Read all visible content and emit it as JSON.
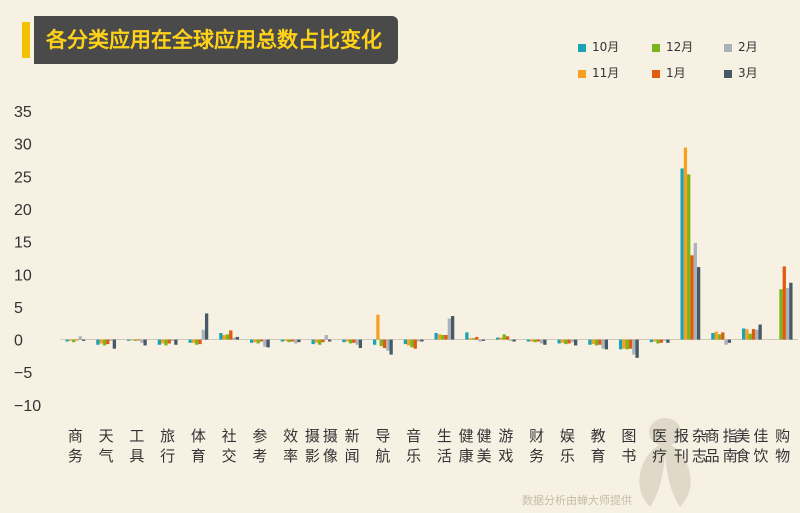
{
  "title": "各分类应用在全球应用总数占比变化",
  "watermark": "数据分析由蝉大师提供",
  "colors": {
    "background": "#f7f1e3",
    "title_bg": "#4a4a4a",
    "title_text": "#ffd21a",
    "accent": "#f2c200"
  },
  "chart_data": {
    "type": "bar",
    "title": "各分类应用在全球应用总数占比变化",
    "ylim": [
      -10,
      35
    ],
    "yticks": [
      35,
      30,
      25,
      20,
      15,
      10,
      5,
      0,
      -5,
      -10
    ],
    "legend_position": "top-right",
    "grid": false,
    "categories": [
      "商务",
      "天气",
      "工具",
      "旅行",
      "体育",
      "社交",
      "参考",
      "效率",
      "摄影摄像",
      "新闻",
      "导航",
      "音乐",
      "生活",
      "健康健美",
      "游戏",
      "财务",
      "娱乐",
      "教育",
      "图书",
      "医疗",
      "报刊杂志",
      "商品指南",
      "美食佳饮",
      "购物"
    ],
    "series": [
      {
        "name": "10月",
        "color": "#1aa3b5",
        "values": [
          -0.3,
          -0.8,
          -0.2,
          -0.8,
          -0.5,
          1.0,
          -0.5,
          -0.3,
          -0.7,
          -0.4,
          -0.8,
          -0.7,
          1.0,
          1.1,
          0.3,
          -0.3,
          -0.6,
          -0.8,
          -1.5,
          -0.4,
          26.2,
          1.0,
          1.7,
          0
        ]
      },
      {
        "name": "11月",
        "color": "#f5a020",
        "values": [
          -0.2,
          -0.6,
          -0.1,
          -0.6,
          -0.5,
          0.7,
          -0.4,
          -0.2,
          -0.5,
          -0.3,
          3.8,
          -0.9,
          0.8,
          0.2,
          0.3,
          -0.3,
          -0.5,
          -0.7,
          -1.4,
          -0.3,
          29.4,
          1.2,
          1.6,
          0
        ]
      },
      {
        "name": "12月",
        "color": "#7ab51d",
        "values": [
          -0.4,
          -0.9,
          -0.2,
          -0.9,
          -0.8,
          0.8,
          -0.6,
          -0.4,
          -0.8,
          -0.6,
          -1.0,
          -1.2,
          0.7,
          0.2,
          0.8,
          -0.4,
          -0.7,
          -0.9,
          -1.5,
          -0.6,
          25.3,
          0.8,
          0.9,
          7.7
        ]
      },
      {
        "name": "1月",
        "color": "#e05a10",
        "values": [
          -0.1,
          -0.7,
          -0.1,
          -0.6,
          -0.7,
          1.4,
          -0.3,
          -0.3,
          -0.4,
          -0.5,
          -1.3,
          -1.4,
          0.7,
          0.4,
          0.5,
          -0.3,
          -0.6,
          -0.8,
          -1.4,
          -0.5,
          12.9,
          1.1,
          1.6,
          11.2
        ]
      },
      {
        "name": "2月",
        "color": "#a9b3b9",
        "values": [
          0.5,
          -0.2,
          -0.5,
          -0.2,
          1.5,
          0.3,
          -1.1,
          -0.6,
          0.7,
          -0.8,
          -1.7,
          -0.3,
          3.2,
          -0.3,
          -0.2,
          -0.6,
          -0.4,
          -1.4,
          -2.3,
          -0.2,
          14.8,
          -0.8,
          1.5,
          7.9
        ]
      },
      {
        "name": "3月",
        "color": "#475866",
        "values": [
          -0.2,
          -1.4,
          -0.9,
          -0.8,
          4.0,
          0.4,
          -1.2,
          -0.4,
          -0.3,
          -1.3,
          -2.3,
          -0.3,
          3.6,
          -0.2,
          -0.3,
          -0.8,
          -0.9,
          -1.5,
          -2.8,
          -0.5,
          11.1,
          -0.5,
          2.3,
          8.7
        ]
      }
    ]
  }
}
